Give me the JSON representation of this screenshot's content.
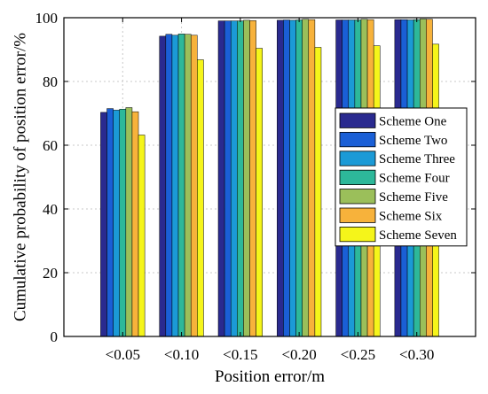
{
  "chart_data": {
    "type": "bar",
    "xlabel": "Position error/m",
    "ylabel": "Cumulative probability of position error/%",
    "ylim": [
      0,
      100
    ],
    "yticks": [
      0,
      20,
      40,
      60,
      80,
      100
    ],
    "grid": true,
    "legend_position": "right",
    "categories": [
      "<0.05",
      "<0.10",
      "<0.15",
      "<0.20",
      "<0.25",
      "<0.30"
    ],
    "series": [
      {
        "name": "Scheme One",
        "color": "#2a2a8f",
        "values": [
          70.3,
          94.2,
          99.0,
          99.2,
          99.3,
          99.4
        ]
      },
      {
        "name": "Scheme Two",
        "color": "#1a5fd6",
        "values": [
          71.5,
          94.8,
          99.0,
          99.3,
          99.3,
          99.4
        ]
      },
      {
        "name": "Scheme Three",
        "color": "#1b9ad6",
        "values": [
          71.0,
          94.5,
          99.0,
          99.2,
          99.3,
          99.3
        ]
      },
      {
        "name": "Scheme Four",
        "color": "#2db89a",
        "values": [
          71.3,
          94.9,
          99.0,
          99.3,
          99.3,
          99.4
        ]
      },
      {
        "name": "Scheme Five",
        "color": "#9bbf5a",
        "values": [
          71.8,
          94.8,
          99.2,
          99.5,
          99.5,
          99.6
        ]
      },
      {
        "name": "Scheme Six",
        "color": "#f7b23b",
        "values": [
          70.5,
          94.5,
          99.1,
          99.4,
          99.4,
          99.5
        ]
      },
      {
        "name": "Scheme Seven",
        "color": "#f5f51a",
        "values": [
          63.2,
          86.8,
          90.4,
          90.7,
          91.2,
          91.7
        ]
      }
    ]
  }
}
